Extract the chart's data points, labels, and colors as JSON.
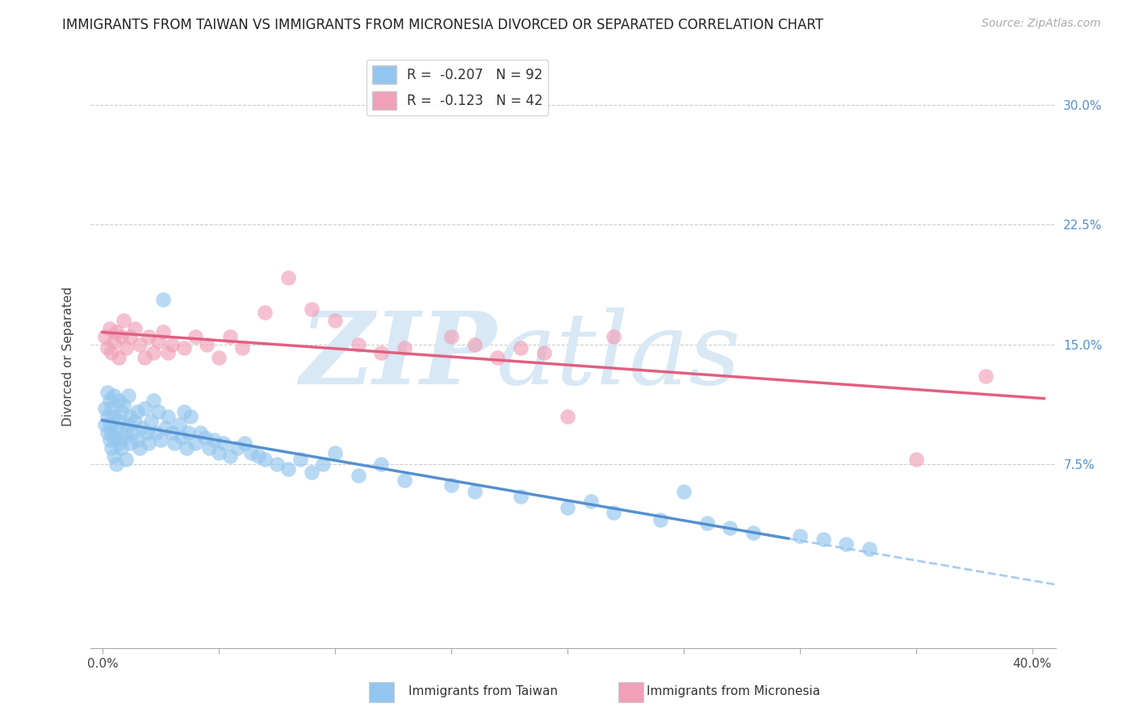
{
  "title": "IMMIGRANTS FROM TAIWAN VS IMMIGRANTS FROM MICRONESIA DIVORCED OR SEPARATED CORRELATION CHART",
  "source": "Source: ZipAtlas.com",
  "ylabel": "Divorced or Separated",
  "legend_label1": "Immigrants from Taiwan",
  "legend_label2": "Immigrants from Micronesia",
  "R1": -0.207,
  "N1": 92,
  "R2": -0.123,
  "N2": 42,
  "xlim": [
    -0.005,
    0.41
  ],
  "ylim": [
    -0.04,
    0.325
  ],
  "yticks": [
    0.075,
    0.15,
    0.225,
    0.3
  ],
  "ytick_labels": [
    "7.5%",
    "15.0%",
    "22.5%",
    "30.0%"
  ],
  "xticks": [
    0.0,
    0.05,
    0.1,
    0.15,
    0.2,
    0.25,
    0.3,
    0.35,
    0.4
  ],
  "xtick_labels": [
    "0.0%",
    "",
    "",
    "",
    "",
    "",
    "",
    "",
    "40.0%"
  ],
  "color_blue": "#93C6EE",
  "color_pink": "#F0A0B8",
  "color_blue_line": "#5590D0",
  "color_pink_line": "#E06080",
  "color_dashed": "#AACCEE",
  "watermark_zip": "ZIP",
  "watermark_atlas": "atlas",
  "watermark_color": "#D8E8F5",
  "background_color": "#FFFFFF",
  "title_fontsize": 12,
  "axis_label_fontsize": 11,
  "tick_fontsize": 11,
  "source_fontsize": 10,
  "taiwan_x": [
    0.001,
    0.001,
    0.002,
    0.002,
    0.002,
    0.003,
    0.003,
    0.003,
    0.004,
    0.004,
    0.004,
    0.005,
    0.005,
    0.005,
    0.005,
    0.006,
    0.006,
    0.007,
    0.007,
    0.007,
    0.008,
    0.008,
    0.009,
    0.009,
    0.01,
    0.01,
    0.011,
    0.011,
    0.012,
    0.012,
    0.013,
    0.014,
    0.015,
    0.015,
    0.016,
    0.017,
    0.018,
    0.019,
    0.02,
    0.021,
    0.022,
    0.023,
    0.024,
    0.025,
    0.026,
    0.027,
    0.028,
    0.03,
    0.031,
    0.033,
    0.034,
    0.035,
    0.036,
    0.037,
    0.038,
    0.04,
    0.042,
    0.044,
    0.046,
    0.048,
    0.05,
    0.052,
    0.055,
    0.058,
    0.061,
    0.064,
    0.067,
    0.07,
    0.075,
    0.08,
    0.085,
    0.09,
    0.095,
    0.1,
    0.11,
    0.12,
    0.13,
    0.15,
    0.16,
    0.18,
    0.2,
    0.21,
    0.22,
    0.24,
    0.25,
    0.26,
    0.27,
    0.28,
    0.3,
    0.31,
    0.32,
    0.33
  ],
  "taiwan_y": [
    0.1,
    0.11,
    0.095,
    0.105,
    0.12,
    0.09,
    0.1,
    0.115,
    0.085,
    0.095,
    0.11,
    0.08,
    0.092,
    0.105,
    0.118,
    0.075,
    0.098,
    0.088,
    0.102,
    0.115,
    0.085,
    0.108,
    0.092,
    0.112,
    0.078,
    0.095,
    0.1,
    0.118,
    0.088,
    0.105,
    0.095,
    0.102,
    0.09,
    0.108,
    0.085,
    0.098,
    0.11,
    0.095,
    0.088,
    0.102,
    0.115,
    0.095,
    0.108,
    0.09,
    0.178,
    0.098,
    0.105,
    0.095,
    0.088,
    0.1,
    0.092,
    0.108,
    0.085,
    0.095,
    0.105,
    0.088,
    0.095,
    0.092,
    0.085,
    0.09,
    0.082,
    0.088,
    0.08,
    0.085,
    0.088,
    0.082,
    0.08,
    0.078,
    0.075,
    0.072,
    0.078,
    0.07,
    0.075,
    0.082,
    0.068,
    0.075,
    0.065,
    0.062,
    0.058,
    0.055,
    0.048,
    0.052,
    0.045,
    0.04,
    0.058,
    0.038,
    0.035,
    0.032,
    0.03,
    0.028,
    0.025,
    0.022
  ],
  "micronesia_x": [
    0.001,
    0.002,
    0.003,
    0.004,
    0.005,
    0.006,
    0.007,
    0.008,
    0.009,
    0.01,
    0.012,
    0.014,
    0.016,
    0.018,
    0.02,
    0.022,
    0.024,
    0.026,
    0.028,
    0.03,
    0.035,
    0.04,
    0.045,
    0.05,
    0.055,
    0.06,
    0.07,
    0.08,
    0.09,
    0.1,
    0.11,
    0.12,
    0.13,
    0.15,
    0.16,
    0.17,
    0.18,
    0.19,
    0.2,
    0.22,
    0.35,
    0.38
  ],
  "micronesia_y": [
    0.155,
    0.148,
    0.16,
    0.145,
    0.152,
    0.158,
    0.142,
    0.155,
    0.165,
    0.148,
    0.155,
    0.16,
    0.15,
    0.142,
    0.155,
    0.145,
    0.152,
    0.158,
    0.145,
    0.15,
    0.148,
    0.155,
    0.15,
    0.142,
    0.155,
    0.148,
    0.17,
    0.192,
    0.172,
    0.165,
    0.15,
    0.145,
    0.148,
    0.155,
    0.15,
    0.142,
    0.148,
    0.145,
    0.105,
    0.155,
    0.078,
    0.13
  ]
}
